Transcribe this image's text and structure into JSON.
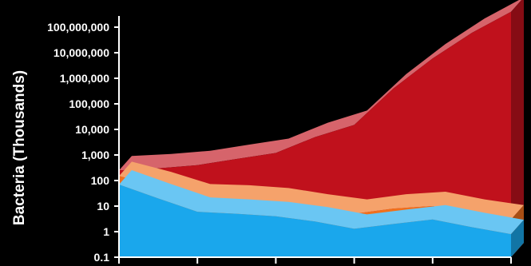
{
  "chart_data": {
    "type": "area",
    "title": "",
    "xlabel": "",
    "ylabel": "Bacteria (Thousands)",
    "yscale": "log",
    "ylim": [
      0.1,
      100000000
    ],
    "y_tick_labels": [
      "100,000,000",
      "10,000,000",
      "1,000,000",
      "100,000",
      "10,000",
      "1,000",
      "100",
      "10",
      "1",
      "0.1"
    ],
    "x": [
      0,
      1,
      2,
      3,
      4,
      5,
      6,
      7,
      8,
      9,
      10
    ],
    "x_tick_labels": [
      "",
      "",
      "",
      "",
      "",
      ""
    ],
    "stacked": true,
    "series": [
      {
        "color": "#1aa7ec",
        "values": [
          70,
          20,
          6,
          5,
          4,
          2.5,
          1.3,
          2,
          3,
          1.5,
          0.8
        ]
      },
      {
        "color": "#f0701c",
        "values": [
          150,
          60,
          20,
          18,
          14,
          8,
          5,
          8,
          10,
          5,
          3
        ]
      },
      {
        "color": "#c0111c",
        "values": [
          250,
          300,
          400,
          700,
          1200,
          5000,
          15000,
          400000,
          6000000,
          60000000,
          400000000
        ]
      }
    ]
  }
}
